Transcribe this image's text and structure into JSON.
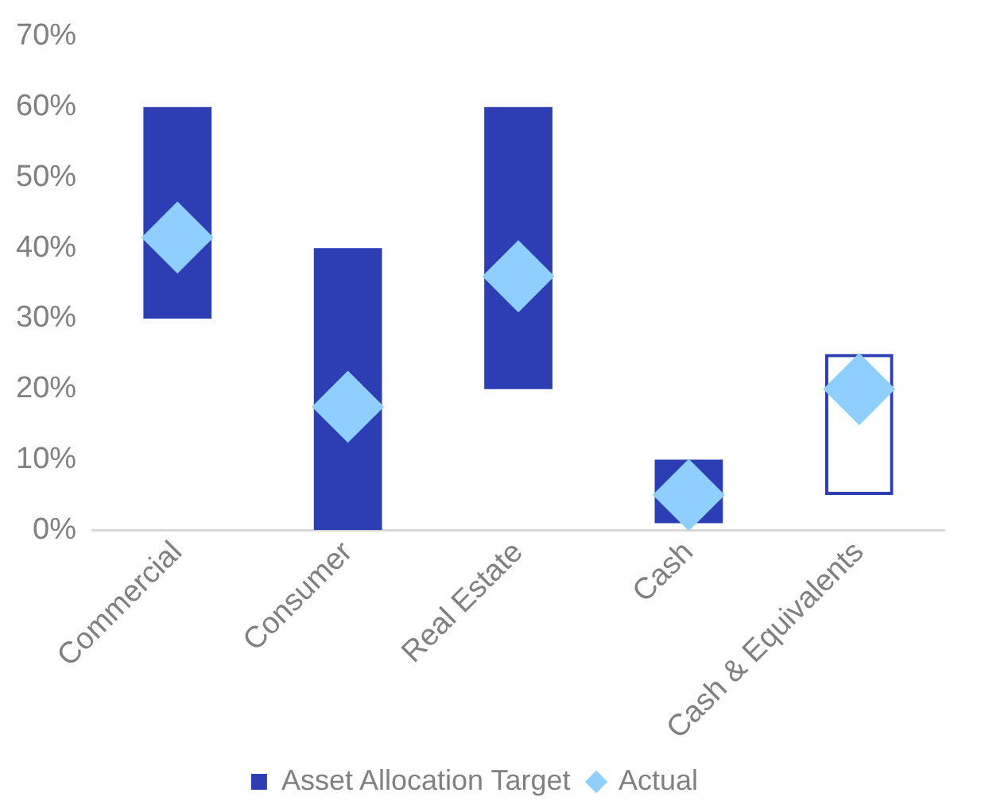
{
  "chart_data": {
    "type": "bar",
    "categories": [
      "Commercial",
      "Consumer",
      "Real Estate",
      "Cash",
      "Cash & Equivalents"
    ],
    "series": [
      {
        "name": "Asset Allocation Target",
        "color": "#2d3db4",
        "base": [
          30,
          0,
          20,
          1,
          null
        ],
        "values": [
          30,
          40,
          40,
          9,
          null
        ]
      },
      {
        "color": "#2d3db4",
        "line_style": "dashed",
        "base": [
          null,
          null,
          null,
          null,
          5
        ],
        "values": [
          null,
          null,
          null,
          null,
          20
        ]
      },
      {
        "name": "Actual",
        "type": "scatter",
        "color": "#8ecfff",
        "marker": "diamond",
        "x": [
          "Commercial",
          "Consumer",
          "Real Estate",
          "Cash",
          "Cash & Equivalents"
        ],
        "values": [
          41.5,
          17.5,
          36,
          5,
          20
        ]
      }
    ],
    "ylim": [
      0,
      70
    ],
    "yticks": [
      {
        "value": 0,
        "label": "0%"
      },
      {
        "value": 10,
        "label": "10%"
      },
      {
        "value": 20,
        "label": "20%"
      },
      {
        "value": 30,
        "label": "30%"
      },
      {
        "value": 40,
        "label": "40%"
      },
      {
        "value": 50,
        "label": "50%"
      },
      {
        "value": 60,
        "label": "60%"
      },
      {
        "value": 70,
        "label": "70%"
      }
    ],
    "grid": false,
    "legend": "bottom"
  }
}
